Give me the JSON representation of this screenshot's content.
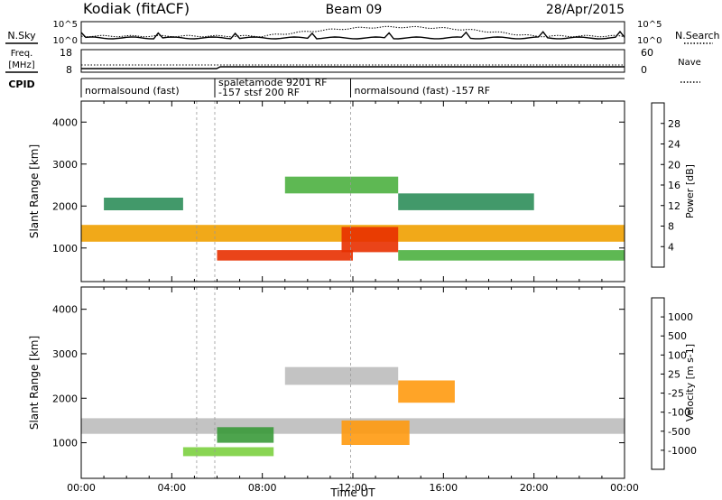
{
  "header": {
    "station": "Kodiak (fitACF)",
    "beam": "Beam 09",
    "date": "28/Apr/2015"
  },
  "top_panels": {
    "nsky_label": "N.Sky",
    "nsearch_label": "N.Search",
    "nsky_ticks": [
      "10^5",
      "10^0"
    ],
    "freq_label": "Freq.",
    "freq_unit": "[MHz]",
    "freq_ticks": [
      "18",
      "8"
    ],
    "nave_label": "Nave",
    "nave_ticks": [
      "60",
      "0"
    ],
    "cpid_label": "CPID"
  },
  "cpid_segments": [
    {
      "start_hour": 0.0,
      "end_hour": 5.1,
      "label": "normalsound (fast)",
      "sub": ""
    },
    {
      "start_hour": 5.9,
      "end_hour": 11.9,
      "label": "spaletamode 9201 RF",
      "sub": "-157 stsf 200 RF"
    },
    {
      "start_hour": 11.9,
      "end_hour": 24.0,
      "label": "normalsound (fast) -157 RF",
      "sub": ""
    }
  ],
  "colors": {
    "power": [
      "#1010ee",
      "#2850b0",
      "#2e8e5a",
      "#4cb040",
      "#f0e000",
      "#f0a000",
      "#f07000",
      "#e83000",
      "#e00000"
    ],
    "velocity": [
      "#ee0000",
      "#ff5a00",
      "#ff9a10",
      "#f5c040",
      "#b8b8b8",
      "#7cd040",
      "#3a9a3a",
      "#2a5aa0",
      "#1a2ab8"
    ],
    "ground_scatter": "#bcbcbc"
  },
  "chart_data": [
    {
      "type": "heatmap",
      "panel": "power",
      "ylabel": "Slant Range [km]",
      "yticks": [
        "1000",
        "2000",
        "3000",
        "4000"
      ],
      "ylim": [
        200,
        4500
      ],
      "xlim": [
        0,
        24
      ],
      "colorbar_label": "Power [dB]",
      "colorbar_ticks": [
        "28",
        "24",
        "20",
        "16",
        "12",
        "8",
        "4"
      ],
      "clim": [
        0,
        32
      ],
      "bands": [
        {
          "t0": 0.0,
          "t1": 24.0,
          "r0": 1150,
          "r1": 1550,
          "value": 18
        },
        {
          "t0": 1.0,
          "t1": 4.5,
          "r0": 1900,
          "r1": 2200,
          "value": 10
        },
        {
          "t0": 6.0,
          "t1": 12.0,
          "r0": 700,
          "r1": 950,
          "value": 26
        },
        {
          "t0": 9.0,
          "t1": 14.0,
          "r0": 2300,
          "r1": 2700,
          "value": 12
        },
        {
          "t0": 11.5,
          "t1": 14.0,
          "r0": 900,
          "r1": 1500,
          "value": 28
        },
        {
          "t0": 14.0,
          "t1": 24.0,
          "r0": 700,
          "r1": 950,
          "value": 12
        },
        {
          "t0": 14.0,
          "t1": 20.0,
          "r0": 1900,
          "r1": 2300,
          "value": 10
        }
      ]
    },
    {
      "type": "heatmap",
      "panel": "velocity",
      "ylabel": "Slant Range [km]",
      "yticks": [
        "1000",
        "2000",
        "3000",
        "4000"
      ],
      "ylim": [
        200,
        4500
      ],
      "xlim": [
        0,
        24
      ],
      "xlabel": "Time UT",
      "xticks": [
        "00:00",
        "04:00",
        "08:00",
        "12:00",
        "16:00",
        "20:00",
        "00:00"
      ],
      "colorbar_label": "Velocity [m s-1]",
      "colorbar_ticks": [
        "1000",
        "500",
        "100",
        "25",
        "-25",
        "-100",
        "-500",
        "-1000"
      ],
      "bands": [
        {
          "t0": 0.0,
          "t1": 24.0,
          "r0": 1200,
          "r1": 1550,
          "value": 0,
          "ground": true
        },
        {
          "t0": 6.0,
          "t1": 8.5,
          "r0": 1000,
          "r1": 1350,
          "value": 150
        },
        {
          "t0": 4.5,
          "t1": 8.5,
          "r0": 700,
          "r1": 900,
          "value": 80
        },
        {
          "t0": 11.5,
          "t1": 14.5,
          "r0": 950,
          "r1": 1500,
          "value": -200
        },
        {
          "t0": 14.0,
          "t1": 16.5,
          "r0": 1900,
          "r1": 2400,
          "value": -300
        },
        {
          "t0": 9.0,
          "t1": 14.0,
          "r0": 2300,
          "r1": 2700,
          "value": 0,
          "ground": true
        }
      ]
    }
  ]
}
